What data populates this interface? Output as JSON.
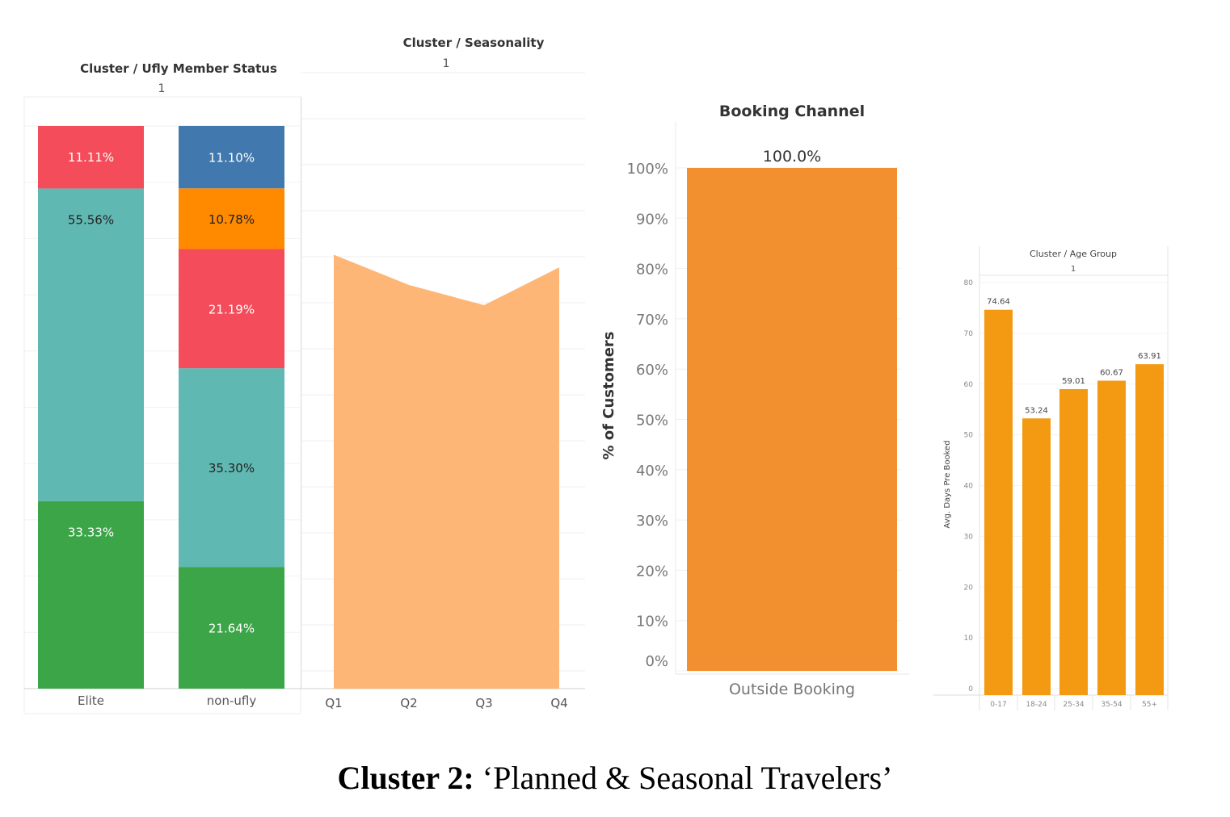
{
  "caption": {
    "bold": "Cluster 2:",
    "text": " ‘Planned & Seasonal Travelers’"
  },
  "chart_data": [
    {
      "type": "bar",
      "stacked": true,
      "title": "Cluster / Ufly Member Status",
      "subtitle": "1",
      "categories": [
        "Elite",
        "non-ufly"
      ],
      "stacks": [
        {
          "category": "Elite",
          "segments": [
            {
              "value": 33.33,
              "label": "33.33%",
              "color": "#3ca548"
            },
            {
              "value": 55.56,
              "label": "55.56%",
              "color": "#60b8b2"
            },
            {
              "value": 11.11,
              "label": "11.11%",
              "color": "#f44c5a"
            }
          ]
        },
        {
          "category": "non-ufly",
          "segments": [
            {
              "value": 21.64,
              "label": "21.64%",
              "color": "#3ca548"
            },
            {
              "value": 35.3,
              "label": "35.30%",
              "color": "#60b8b2"
            },
            {
              "value": 21.19,
              "label": "21.19%",
              "color": "#f44c5a"
            },
            {
              "value": 10.78,
              "label": "10.78%",
              "color": "#ff8a00"
            },
            {
              "value": 11.1,
              "label": "11.10%",
              "color": "#4178ad"
            }
          ]
        }
      ],
      "ylim": [
        0,
        100
      ],
      "grid": true
    },
    {
      "type": "area",
      "title": "Cluster / Seasonality",
      "subtitle": "1",
      "categories": [
        "Q1",
        "Q2",
        "Q3",
        "Q4"
      ],
      "values": [
        86,
        80,
        76,
        83.5
      ],
      "ylim": [
        0,
        100
      ],
      "color": "#fdb675",
      "grid": true
    },
    {
      "type": "bar",
      "title": "Booking Channel",
      "ylabel": "% of Customers",
      "categories": [
        "Outside Booking"
      ],
      "values": [
        100.0
      ],
      "data_labels": [
        "100.0%"
      ],
      "yticks": [
        "0%",
        "10%",
        "20%",
        "30%",
        "40%",
        "50%",
        "60%",
        "70%",
        "80%",
        "90%",
        "100%"
      ],
      "ylim": [
        0,
        100
      ],
      "color": "#f28f2e",
      "grid": true
    },
    {
      "type": "bar",
      "title": "Cluster / Age Group",
      "subtitle": "1",
      "ylabel": "Avg. Days Pre Booked",
      "categories": [
        "0-17",
        "18-24",
        "25-34",
        "35-54",
        "55+"
      ],
      "values": [
        74.64,
        53.24,
        59.01,
        60.67,
        63.91
      ],
      "data_labels": [
        "74.64",
        "53.24",
        "59.01",
        "60.67",
        "63.91"
      ],
      "yticks": [
        "0",
        "10",
        "20",
        "30",
        "40",
        "50",
        "60",
        "70",
        "80"
      ],
      "ylim": [
        0,
        80
      ],
      "color": "#f39a12",
      "grid": true
    }
  ]
}
